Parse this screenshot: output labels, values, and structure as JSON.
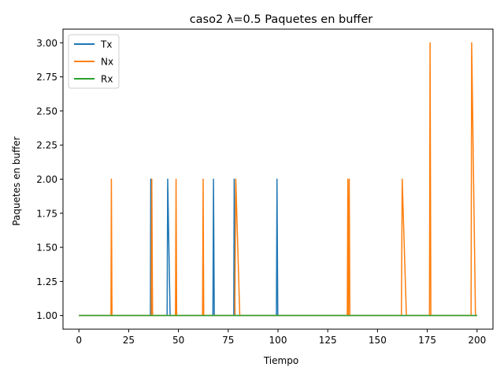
{
  "chart_data": {
    "type": "line",
    "title": "caso2 λ=0.5 Paquetes en buffer",
    "xlabel": "Tiempo",
    "ylabel": "Paquetes en buffer",
    "xlim": [
      -8,
      208
    ],
    "ylim": [
      0.9,
      3.1
    ],
    "x_ticks": [
      0,
      25,
      50,
      75,
      100,
      125,
      150,
      175,
      200
    ],
    "x_tick_labels": [
      "0",
      "25",
      "50",
      "75",
      "100",
      "125",
      "150",
      "175",
      "200"
    ],
    "y_ticks": [
      1.0,
      1.25,
      1.5,
      1.75,
      2.0,
      2.25,
      2.5,
      2.75,
      3.0
    ],
    "y_tick_labels": [
      "1.00",
      "1.25",
      "1.50",
      "1.75",
      "2.00",
      "2.25",
      "2.50",
      "2.75",
      "3.00"
    ],
    "grid": false,
    "legend": {
      "position": "top-left"
    },
    "series": [
      {
        "name": "Tx",
        "color": "#1f77b4",
        "x": [
          0,
          35.9,
          36.1,
          36.5,
          44.3,
          44.6,
          45.8,
          67.3,
          67.6,
          68.0,
          77.8,
          78.0,
          78.4,
          99.2,
          99.5,
          99.9,
          200
        ],
        "y": [
          1,
          1,
          2,
          1,
          1,
          2,
          1,
          1,
          2,
          1,
          1,
          2,
          1,
          1,
          2,
          1,
          1
        ]
      },
      {
        "name": "Nx",
        "color": "#ff7f0e",
        "x": [
          0,
          16.1,
          16.3,
          16.6,
          36.3,
          36.6,
          37.0,
          48.5,
          48.8,
          49.1,
          62.1,
          62.4,
          62.7,
          78.3,
          78.8,
          80.8,
          134.8,
          135.1,
          135.4,
          135.8,
          136.1,
          162.0,
          162.4,
          164.5,
          176.1,
          176.4,
          176.8,
          197.0,
          197.3,
          199.2,
          200
        ],
        "y": [
          1,
          1,
          2,
          1,
          1,
          2,
          1,
          1,
          2,
          1,
          1,
          2,
          1,
          1,
          2,
          1,
          1,
          2,
          1,
          2,
          1,
          1,
          2,
          1,
          1,
          3,
          1,
          1,
          3,
          1,
          1
        ]
      },
      {
        "name": "Rx",
        "color": "#2ca02c",
        "x": [
          0,
          200
        ],
        "y": [
          1,
          1
        ]
      }
    ]
  }
}
